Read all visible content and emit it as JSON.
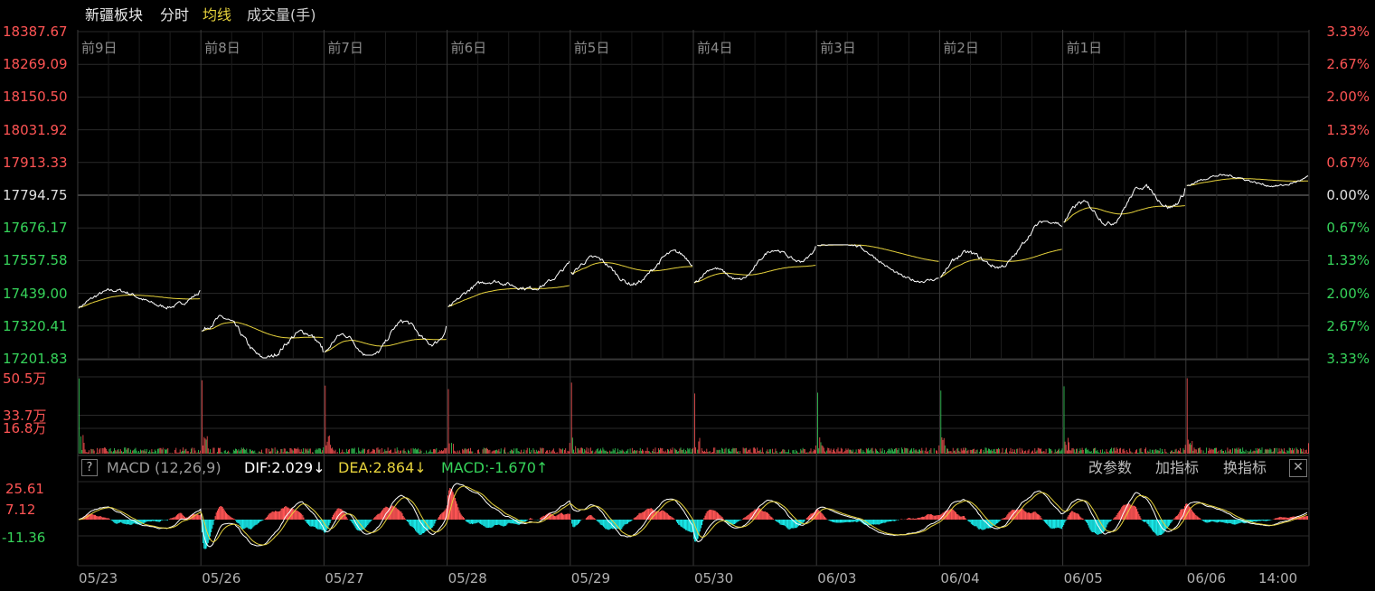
{
  "header": {
    "sector": "新疆板块",
    "tab_minute": "分时",
    "tab_avg": "均线",
    "tab_volume": "成交量(手)"
  },
  "price_axis": {
    "left_labels": [
      "18387.67",
      "18269.09",
      "18150.50",
      "18031.92",
      "17913.33",
      "17794.75",
      "17676.17",
      "17557.58",
      "17439.00",
      "17320.41",
      "17201.83"
    ],
    "right_labels": [
      "3.33%",
      "2.67%",
      "2.00%",
      "1.33%",
      "0.67%",
      "0.00%",
      "0.67%",
      "1.33%",
      "2.00%",
      "2.67%",
      "3.33%"
    ]
  },
  "day_labels": [
    "前9日",
    "前8日",
    "前7日",
    "前6日",
    "前5日",
    "前4日",
    "前3日",
    "前2日",
    "前1日"
  ],
  "date_labels": [
    "05/23",
    "05/26",
    "05/27",
    "05/28",
    "05/29",
    "05/30",
    "06/03",
    "06/04",
    "06/05",
    "06/06",
    "14:00"
  ],
  "volume_axis": {
    "labels": [
      "50.5万",
      "33.7万",
      "16.8万"
    ]
  },
  "macd": {
    "help": "?",
    "title": "MACD (12,26,9)",
    "dif": "DIF:2.029↓",
    "dea": "DEA:2.864↓",
    "macd_value": "MACD:-1.670↑",
    "btn_params": "改参数",
    "btn_add": "加指标",
    "btn_switch": "换指标",
    "btn_close": "✕",
    "labels": [
      "25.61",
      "7.12",
      "-11.36"
    ]
  },
  "colors": {
    "up": "#ff5454",
    "down": "#36d35a",
    "avg_line": "#e6d23c",
    "price_line": "#ffffff",
    "macd_neg": "#19e6e6",
    "grid": "#2a2a2a"
  },
  "chart_data": {
    "type": "line",
    "title": "",
    "xlabel": "",
    "ylabel": "",
    "base_price": 17794.75,
    "ylim": [
      17201.83,
      18387.67
    ],
    "series": [
      {
        "name": "",
        "session_x": [
          "05/23",
          "05/26",
          "05/27",
          "05/28",
          "05/29",
          "05/30",
          "06/03",
          "06/04",
          "06/05",
          "06/06"
        ],
        "open": [
          17390,
          17300,
          17225,
          17385,
          17510,
          17475,
          17615,
          17500,
          17700,
          17830
        ],
        "close": [
          17450,
          17225,
          17320,
          17555,
          17540,
          17610,
          17495,
          17680,
          17820,
          17865
        ],
        "low": [
          17360,
          17205,
          17215,
          17370,
          17430,
          17470,
          17470,
          17490,
          17620,
          17790
        ],
        "high": [
          17535,
          17450,
          17430,
          17560,
          17640,
          17620,
          17615,
          17700,
          17835,
          17900
        ]
      }
    ]
  }
}
